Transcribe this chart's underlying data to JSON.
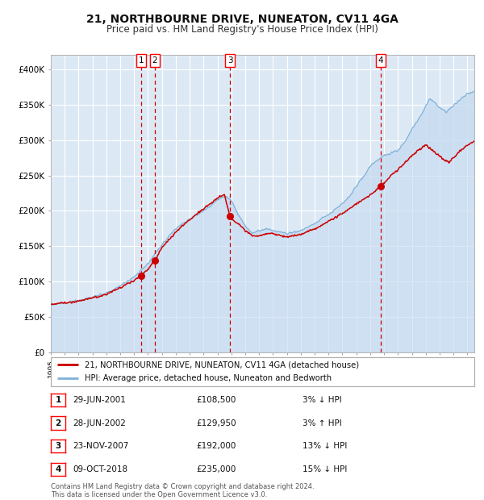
{
  "title": "21, NORTHBOURNE DRIVE, NUNEATON, CV11 4GA",
  "subtitle": "Price paid vs. HM Land Registry's House Price Index (HPI)",
  "title_fontsize": 10,
  "subtitle_fontsize": 8.5,
  "ylim": [
    0,
    420000
  ],
  "yticks": [
    0,
    50000,
    100000,
    150000,
    200000,
    250000,
    300000,
    350000,
    400000
  ],
  "ytick_labels": [
    "£0",
    "£50K",
    "£100K",
    "£150K",
    "£200K",
    "£250K",
    "£300K",
    "£350K",
    "£400K"
  ],
  "plot_bg_color": "#dce9f5",
  "grid_color": "#ffffff",
  "red_line_color": "#cc0000",
  "blue_line_color": "#7fb0d8",
  "blue_fill_color": "#c5daf0",
  "vline_color": "#cc0000",
  "transactions": [
    {
      "num": 1,
      "date_num": 2001.49,
      "price": 108500,
      "label": "1"
    },
    {
      "num": 2,
      "date_num": 2002.49,
      "price": 129950,
      "label": "2"
    },
    {
      "num": 3,
      "date_num": 2007.9,
      "price": 192000,
      "label": "3"
    },
    {
      "num": 4,
      "date_num": 2018.77,
      "price": 235000,
      "label": "4"
    }
  ],
  "table_rows": [
    [
      "1",
      "29-JUN-2001",
      "£108,500",
      "3% ↓ HPI"
    ],
    [
      "2",
      "28-JUN-2002",
      "£129,950",
      "3% ↑ HPI"
    ],
    [
      "3",
      "23-NOV-2007",
      "£192,000",
      "13% ↓ HPI"
    ],
    [
      "4",
      "09-OCT-2018",
      "£235,000",
      "15% ↓ HPI"
    ]
  ],
  "legend_label_red": "21, NORTHBOURNE DRIVE, NUNEATON, CV11 4GA (detached house)",
  "legend_label_blue": "HPI: Average price, detached house, Nuneaton and Bedworth",
  "footer": "Contains HM Land Registry data © Crown copyright and database right 2024.\nThis data is licensed under the Open Government Licence v3.0.",
  "xmin": 1995.0,
  "xmax": 2025.5
}
